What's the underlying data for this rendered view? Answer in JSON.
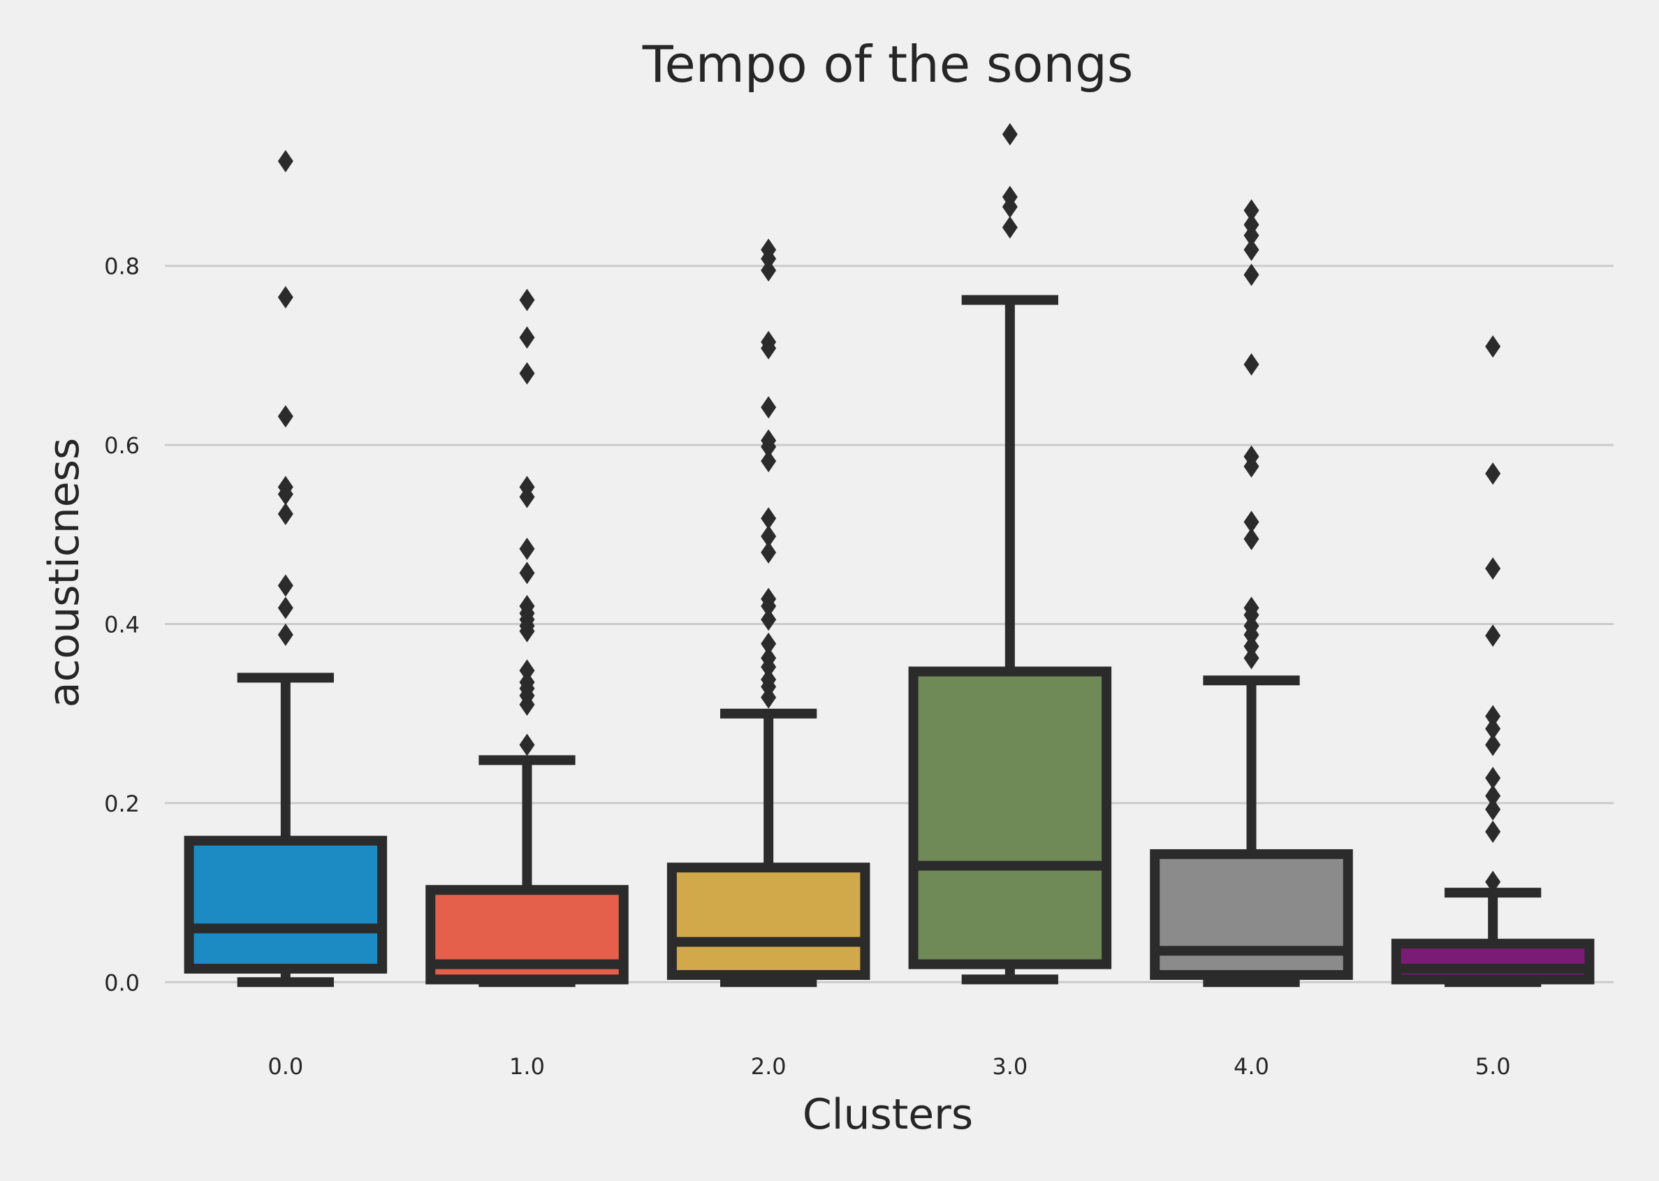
{
  "chart_data": {
    "type": "box",
    "title": "Tempo of the songs",
    "xlabel": "Clusters",
    "ylabel": "acousticness",
    "categories": [
      "0.0",
      "1.0",
      "2.0",
      "3.0",
      "4.0",
      "5.0"
    ],
    "ylim": [
      -0.07,
      0.98
    ],
    "yticks": [
      0.0,
      0.2,
      0.4,
      0.6,
      0.8
    ],
    "ytick_labels": [
      "0.0",
      "0.2",
      "0.4",
      "0.6",
      "0.8"
    ],
    "grid": "horizontal",
    "legend": "none",
    "series": [
      {
        "category": "0.0",
        "color": "#1c8ac3",
        "whisker_low": 0.0,
        "q1": 0.015,
        "median": 0.06,
        "q3": 0.158,
        "whisker_high": 0.34,
        "outliers": [
          0.917,
          0.765,
          0.632,
          0.553,
          0.545,
          0.523,
          0.443,
          0.418,
          0.388
        ]
      },
      {
        "category": "1.0",
        "color": "#e5604a",
        "whisker_low": 0.0,
        "q1": 0.003,
        "median": 0.02,
        "q3": 0.103,
        "whisker_high": 0.248,
        "outliers": [
          0.762,
          0.72,
          0.68,
          0.553,
          0.542,
          0.484,
          0.457,
          0.42,
          0.412,
          0.405,
          0.398,
          0.392,
          0.348,
          0.335,
          0.328,
          0.32,
          0.31,
          0.265
        ]
      },
      {
        "category": "2.0",
        "color": "#d1a84a",
        "whisker_low": 0.0,
        "q1": 0.008,
        "median": 0.045,
        "q3": 0.128,
        "whisker_high": 0.3,
        "outliers": [
          0.818,
          0.808,
          0.795,
          0.715,
          0.708,
          0.642,
          0.605,
          0.598,
          0.582,
          0.518,
          0.498,
          0.48,
          0.428,
          0.42,
          0.405,
          0.378,
          0.362,
          0.352,
          0.338,
          0.33,
          0.318
        ]
      },
      {
        "category": "3.0",
        "color": "#6f8a57",
        "whisker_low": 0.003,
        "q1": 0.02,
        "median": 0.13,
        "q3": 0.347,
        "whisker_high": 0.762,
        "outliers": [
          0.947,
          0.877,
          0.866,
          0.843
        ]
      },
      {
        "category": "4.0",
        "color": "#8b8b8b",
        "whisker_low": 0.0,
        "q1": 0.008,
        "median": 0.035,
        "q3": 0.143,
        "whisker_high": 0.337,
        "outliers": [
          0.862,
          0.846,
          0.834,
          0.818,
          0.79,
          0.69,
          0.587,
          0.576,
          0.514,
          0.495,
          0.418,
          0.41,
          0.398,
          0.388,
          0.375,
          0.362
        ]
      },
      {
        "category": "5.0",
        "color": "#7a1c76",
        "whisker_low": 0.0,
        "q1": 0.003,
        "median": 0.015,
        "q3": 0.043,
        "whisker_high": 0.1,
        "outliers": [
          0.71,
          0.568,
          0.462,
          0.387,
          0.297,
          0.283,
          0.265,
          0.228,
          0.208,
          0.193,
          0.168,
          0.112
        ]
      }
    ]
  }
}
